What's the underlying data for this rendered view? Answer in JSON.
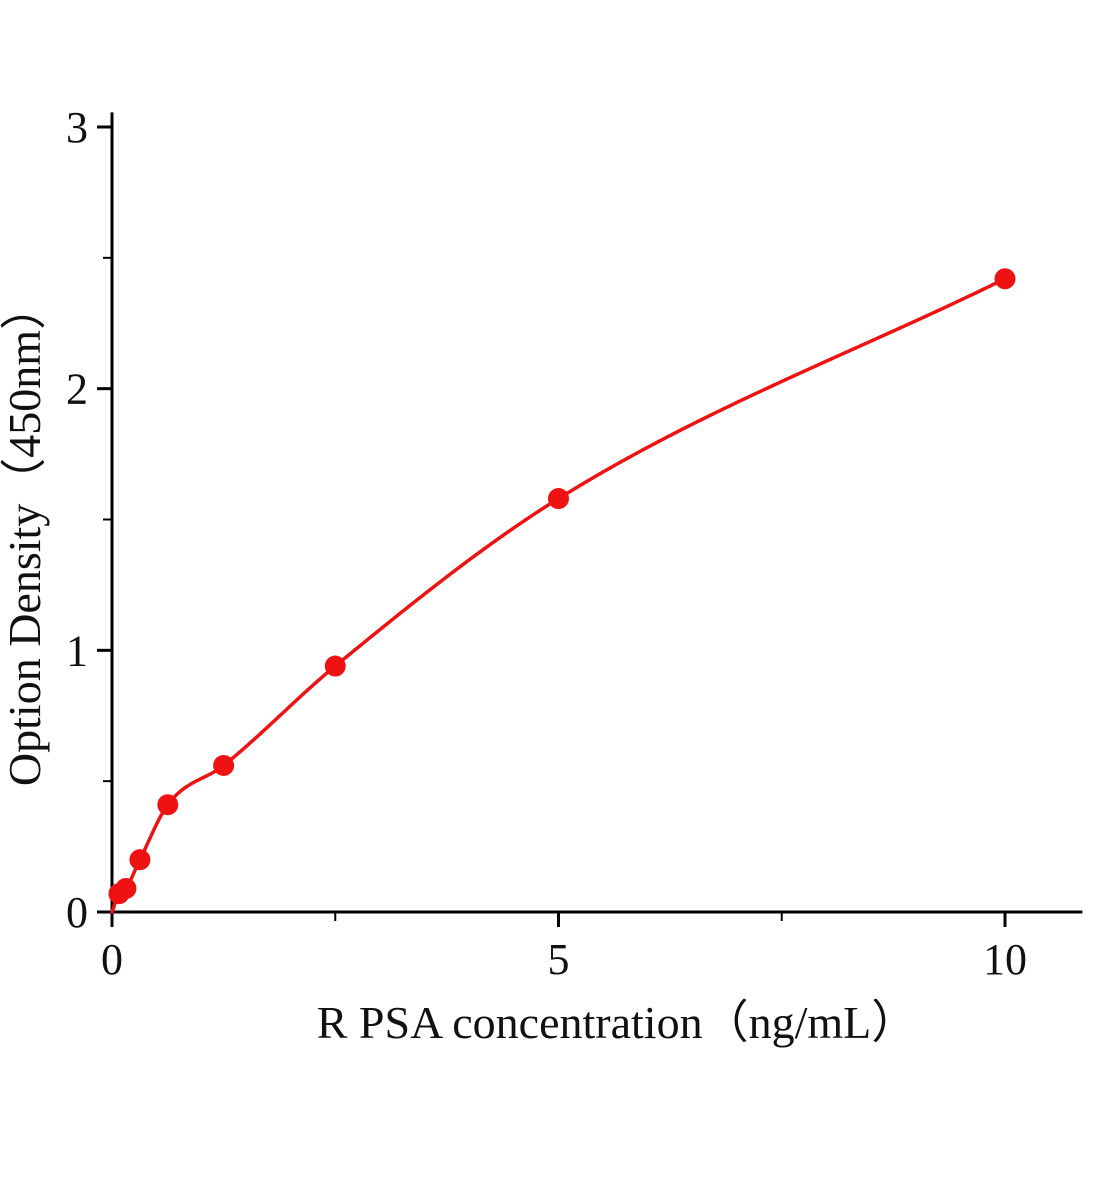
{
  "chart_data": {
    "type": "scatter",
    "title": "",
    "xlabel": "R PSA  concentration（ng/mL）",
    "ylabel": "Option Density（450nm）",
    "x": [
      0.078,
      0.156,
      0.3125,
      0.625,
      1.25,
      2.5,
      5,
      10
    ],
    "y": [
      0.07,
      0.09,
      0.2,
      0.41,
      0.56,
      0.94,
      1.58,
      2.42
    ],
    "curve_start": [
      0,
      0
    ],
    "xlim": [
      0,
      10.85
    ],
    "ylim": [
      0,
      3.05
    ],
    "xticks": [
      0,
      5,
      10
    ],
    "xtick_labels": [
      "0",
      "5",
      "10"
    ],
    "xticks_minor": [
      2.5,
      7.5
    ],
    "yticks": [
      0,
      1,
      2,
      3
    ],
    "ytick_labels": [
      "0",
      "1",
      "2",
      "3"
    ],
    "yticks_minor": [
      0.5,
      1.5,
      2.5
    ],
    "grid": "off",
    "legend": "none",
    "line_color": "#ee1212",
    "marker_color": "#ee1212",
    "axis_color": "#000000",
    "marker_radius": 10.5
  }
}
